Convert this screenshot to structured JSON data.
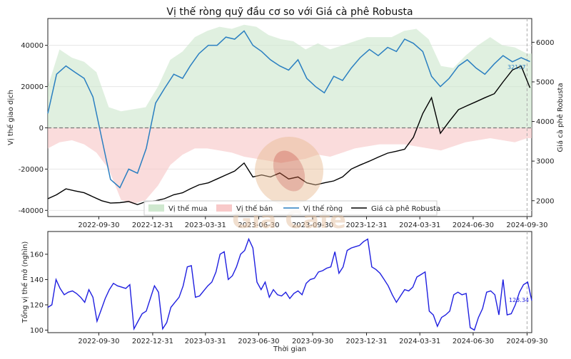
{
  "chart_data": [
    {
      "type": "area",
      "title": "Vị thế ròng quỹ đầu cơ so với Giá cà phê Robusta",
      "ylabel_left": "Vị thế giao dịch",
      "ylabel_right": "Giá cà phê Robusta",
      "ylim_left": [
        -43000,
        53000
      ],
      "ylim_right": [
        1600,
        6600
      ],
      "yticks_left": [
        "-40000",
        "-20000",
        "0",
        "20000",
        "40000"
      ],
      "yticks_right": [
        "2000",
        "3000",
        "4000",
        "5000",
        "6000"
      ],
      "x_ticks": [
        "2022-09-30",
        "2022-12-31",
        "2023-03-31",
        "2023-06-30",
        "2023-09-30",
        "2023-12-31",
        "2024-03-31",
        "2024-06-30",
        "2024-09-30"
      ],
      "x_range": [
        "2022-07-05",
        "2024-10-08"
      ],
      "legend": [
        "Vị thế mua",
        "Vị thế bán",
        "Vị thế ròng",
        "Giá cà phê Robusta"
      ],
      "legend_placement": "bottom-right",
      "last_net_label": "32137",
      "colors": {
        "long": "#cfe8cf",
        "short": "#f8c9c9",
        "net": "#2a7fc1",
        "price": "#000000"
      },
      "series": [
        {
          "name": "Vị thế mua",
          "x": [
            "2022-07-05",
            "2022-07-25",
            "2022-08-15",
            "2022-09-05",
            "2022-09-26",
            "2022-10-17",
            "2022-11-07",
            "2022-11-28",
            "2022-12-19",
            "2023-01-09",
            "2023-01-30",
            "2023-02-20",
            "2023-03-13",
            "2023-04-03",
            "2023-04-24",
            "2023-05-15",
            "2023-06-05",
            "2023-06-26",
            "2023-07-17",
            "2023-08-07",
            "2023-08-28",
            "2023-09-18",
            "2023-10-09",
            "2023-10-30",
            "2023-11-20",
            "2023-12-11",
            "2024-01-01",
            "2024-01-22",
            "2024-02-12",
            "2024-03-04",
            "2024-03-25",
            "2024-04-15",
            "2024-05-06",
            "2024-05-27",
            "2024-06-17",
            "2024-07-08",
            "2024-07-29",
            "2024-08-19",
            "2024-09-09",
            "2024-09-30",
            "2024-10-08"
          ],
          "values": [
            20000,
            38000,
            34000,
            32000,
            27000,
            10000,
            8000,
            9000,
            10000,
            20000,
            33000,
            37000,
            44000,
            47000,
            49000,
            48000,
            50000,
            49000,
            45000,
            43000,
            42000,
            38000,
            41000,
            38000,
            40000,
            42000,
            44000,
            44000,
            44000,
            47000,
            48000,
            43000,
            30000,
            29000,
            35000,
            40000,
            44000,
            40000,
            39000,
            36000,
            36000
          ]
        },
        {
          "name": "Vị thế bán",
          "x": [
            "2022-07-05",
            "2022-07-25",
            "2022-08-15",
            "2022-09-05",
            "2022-09-26",
            "2022-10-17",
            "2022-11-07",
            "2022-11-28",
            "2022-12-19",
            "2023-01-09",
            "2023-01-30",
            "2023-02-20",
            "2023-03-13",
            "2023-04-03",
            "2023-04-24",
            "2023-05-15",
            "2023-06-05",
            "2023-06-26",
            "2023-07-17",
            "2023-08-07",
            "2023-08-28",
            "2023-09-18",
            "2023-10-09",
            "2023-10-30",
            "2023-11-20",
            "2023-12-11",
            "2024-01-01",
            "2024-01-22",
            "2024-02-12",
            "2024-03-04",
            "2024-03-25",
            "2024-04-15",
            "2024-05-06",
            "2024-05-27",
            "2024-06-17",
            "2024-07-08",
            "2024-07-29",
            "2024-08-19",
            "2024-09-09",
            "2024-09-30",
            "2024-10-08"
          ],
          "values": [
            -10000,
            -7000,
            -6000,
            -8000,
            -12000,
            -20000,
            -35000,
            -37000,
            -35000,
            -28000,
            -18000,
            -13000,
            -10000,
            -10000,
            -11000,
            -12000,
            -14000,
            -15000,
            -16000,
            -17000,
            -16000,
            -15000,
            -13000,
            -14000,
            -12000,
            -10000,
            -9000,
            -8000,
            -8000,
            -8000,
            -9000,
            -10000,
            -11000,
            -9000,
            -7000,
            -6000,
            -5000,
            -6000,
            -7000,
            -5000,
            -5000
          ]
        },
        {
          "name": "Vị thế ròng",
          "x": [
            "2022-07-05",
            "2022-07-20",
            "2022-08-05",
            "2022-08-20",
            "2022-09-05",
            "2022-09-20",
            "2022-10-05",
            "2022-10-20",
            "2022-11-05",
            "2022-11-20",
            "2022-12-05",
            "2022-12-20",
            "2023-01-05",
            "2023-01-20",
            "2023-02-05",
            "2023-02-20",
            "2023-03-05",
            "2023-03-20",
            "2023-04-05",
            "2023-04-20",
            "2023-05-05",
            "2023-05-20",
            "2023-06-05",
            "2023-06-20",
            "2023-07-05",
            "2023-07-20",
            "2023-08-05",
            "2023-08-20",
            "2023-09-05",
            "2023-09-20",
            "2023-10-05",
            "2023-10-20",
            "2023-11-05",
            "2023-11-20",
            "2023-12-05",
            "2023-12-20",
            "2024-01-05",
            "2024-01-20",
            "2024-02-05",
            "2024-02-20",
            "2024-03-05",
            "2024-03-20",
            "2024-04-05",
            "2024-04-20",
            "2024-05-05",
            "2024-05-20",
            "2024-06-05",
            "2024-06-20",
            "2024-07-05",
            "2024-07-20",
            "2024-08-05",
            "2024-08-20",
            "2024-09-05",
            "2024-09-20",
            "2024-10-05"
          ],
          "values": [
            7000,
            26000,
            30000,
            27000,
            24000,
            15000,
            -5000,
            -25000,
            -29000,
            -20000,
            -22000,
            -10000,
            12000,
            19000,
            26000,
            24000,
            30000,
            36000,
            40000,
            40000,
            44000,
            43000,
            47000,
            40000,
            37000,
            33000,
            30000,
            28000,
            33000,
            24000,
            20000,
            17000,
            25000,
            23000,
            29000,
            34000,
            38000,
            35000,
            39000,
            37000,
            43000,
            41000,
            37000,
            25000,
            20000,
            24000,
            30000,
            33000,
            29000,
            26000,
            31000,
            35000,
            32000,
            34000,
            32137
          ]
        },
        {
          "name": "Giá cà phê Robusta",
          "x": [
            "2022-07-05",
            "2022-07-20",
            "2022-08-05",
            "2022-08-20",
            "2022-09-05",
            "2022-09-20",
            "2022-10-05",
            "2022-10-20",
            "2022-11-05",
            "2022-11-20",
            "2022-12-05",
            "2022-12-20",
            "2023-01-05",
            "2023-01-20",
            "2023-02-05",
            "2023-02-20",
            "2023-03-05",
            "2023-03-20",
            "2023-04-05",
            "2023-04-20",
            "2023-05-05",
            "2023-05-20",
            "2023-06-05",
            "2023-06-20",
            "2023-07-05",
            "2023-07-20",
            "2023-08-05",
            "2023-08-20",
            "2023-09-05",
            "2023-09-20",
            "2023-10-05",
            "2023-10-20",
            "2023-11-05",
            "2023-11-20",
            "2023-12-05",
            "2023-12-20",
            "2024-01-05",
            "2024-01-20",
            "2024-02-05",
            "2024-02-20",
            "2024-03-05",
            "2024-03-20",
            "2024-04-05",
            "2024-04-20",
            "2024-05-05",
            "2024-05-20",
            "2024-06-05",
            "2024-06-20",
            "2024-07-05",
            "2024-07-20",
            "2024-08-05",
            "2024-08-20",
            "2024-09-05",
            "2024-09-20",
            "2024-10-05"
          ],
          "values": [
            2050,
            2150,
            2300,
            2250,
            2200,
            2100,
            2000,
            1940,
            1950,
            1980,
            1900,
            1980,
            2000,
            2050,
            2150,
            2200,
            2300,
            2400,
            2450,
            2550,
            2650,
            2750,
            2950,
            2600,
            2650,
            2600,
            2700,
            2550,
            2600,
            2450,
            2400,
            2450,
            2500,
            2600,
            2800,
            2900,
            3000,
            3100,
            3200,
            3250,
            3300,
            3600,
            4200,
            4600,
            3700,
            4000,
            4300,
            4400,
            4500,
            4600,
            4700,
            5000,
            5300,
            5400,
            4850
          ]
        }
      ]
    },
    {
      "type": "line",
      "ylabel": "Tổng vị thế mở (nghìn)",
      "xlabel": "Thời gian",
      "ylim": [
        98,
        178
      ],
      "yticks": [
        "100",
        "120",
        "140",
        "160"
      ],
      "x_ticks": [
        "2022-09-30",
        "2022-12-31",
        "2023-03-31",
        "2023-06-30",
        "2023-09-30",
        "2023-12-31",
        "2024-03-31",
        "2024-06-30",
        "2024-09-30"
      ],
      "x_range": [
        "2022-07-05",
        "2024-10-08"
      ],
      "last_label": "123.34",
      "color": "#1f1fe0",
      "x": [
        "2022-07-05",
        "2022-07-12",
        "2022-07-19",
        "2022-07-26",
        "2022-08-02",
        "2022-08-09",
        "2022-08-16",
        "2022-08-23",
        "2022-08-30",
        "2022-09-06",
        "2022-09-13",
        "2022-09-20",
        "2022-09-27",
        "2022-10-04",
        "2022-10-11",
        "2022-10-18",
        "2022-10-25",
        "2022-11-01",
        "2022-11-08",
        "2022-11-15",
        "2022-11-22",
        "2022-11-29",
        "2022-12-06",
        "2022-12-13",
        "2022-12-20",
        "2022-12-27",
        "2023-01-03",
        "2023-01-10",
        "2023-01-17",
        "2023-01-24",
        "2023-01-31",
        "2023-02-07",
        "2023-02-14",
        "2023-02-21",
        "2023-02-28",
        "2023-03-07",
        "2023-03-14",
        "2023-03-21",
        "2023-03-28",
        "2023-04-04",
        "2023-04-11",
        "2023-04-18",
        "2023-04-25",
        "2023-05-02",
        "2023-05-09",
        "2023-05-16",
        "2023-05-23",
        "2023-05-30",
        "2023-06-06",
        "2023-06-13",
        "2023-06-20",
        "2023-06-27",
        "2023-07-04",
        "2023-07-11",
        "2023-07-18",
        "2023-07-25",
        "2023-08-01",
        "2023-08-08",
        "2023-08-15",
        "2023-08-22",
        "2023-08-29",
        "2023-09-05",
        "2023-09-12",
        "2023-09-19",
        "2023-09-26",
        "2023-10-03",
        "2023-10-10",
        "2023-10-17",
        "2023-10-24",
        "2023-10-31",
        "2023-11-07",
        "2023-11-14",
        "2023-11-21",
        "2023-11-28",
        "2023-12-05",
        "2023-12-12",
        "2023-12-19",
        "2023-12-26",
        "2024-01-02",
        "2024-01-09",
        "2024-01-16",
        "2024-01-23",
        "2024-01-30",
        "2024-02-06",
        "2024-02-13",
        "2024-02-20",
        "2024-02-27",
        "2024-03-05",
        "2024-03-12",
        "2024-03-19",
        "2024-03-26",
        "2024-04-02",
        "2024-04-09",
        "2024-04-16",
        "2024-04-23",
        "2024-04-30",
        "2024-05-07",
        "2024-05-14",
        "2024-05-21",
        "2024-05-28",
        "2024-06-04",
        "2024-06-11",
        "2024-06-18",
        "2024-06-25",
        "2024-07-02",
        "2024-07-09",
        "2024-07-16",
        "2024-07-23",
        "2024-07-30",
        "2024-08-06",
        "2024-08-13",
        "2024-08-20",
        "2024-08-27",
        "2024-09-03",
        "2024-09-10",
        "2024-09-17",
        "2024-09-24",
        "2024-10-01",
        "2024-10-08"
      ],
      "values": [
        118,
        120,
        140,
        133,
        128,
        130,
        131,
        129,
        126,
        122,
        132,
        126,
        107,
        116,
        125,
        132,
        137,
        135,
        134,
        133,
        136,
        101,
        107,
        113,
        115,
        125,
        135,
        130,
        101,
        106,
        118,
        122,
        126,
        135,
        150,
        151,
        126,
        127,
        131,
        135,
        138,
        146,
        160,
        162,
        140,
        143,
        150,
        160,
        163,
        172,
        165,
        138,
        132,
        138,
        126,
        132,
        128,
        127,
        130,
        125,
        129,
        131,
        128,
        137,
        140,
        141,
        146,
        147,
        149,
        150,
        162,
        145,
        150,
        163,
        165,
        166,
        167,
        170,
        172,
        150,
        148,
        145,
        140,
        135,
        128,
        122,
        127,
        132,
        131,
        134,
        142,
        144,
        146,
        115,
        112,
        103,
        110,
        112,
        115,
        128,
        130,
        128,
        129,
        102,
        100,
        110,
        117,
        130,
        131,
        128,
        112,
        140,
        112,
        113,
        120,
        130,
        136,
        138,
        123.34
      ]
    }
  ],
  "watermark": "Giá Cafe"
}
